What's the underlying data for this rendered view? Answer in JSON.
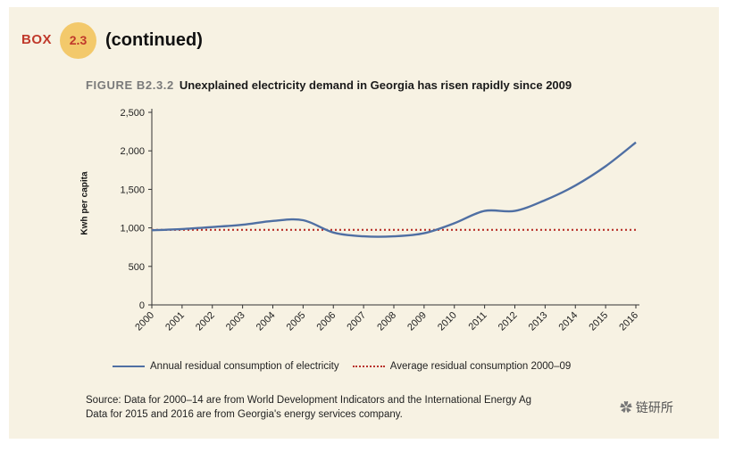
{
  "box": {
    "label": "BOX",
    "number": "2.3",
    "continued": "(continued)"
  },
  "figure": {
    "id": "FIGURE B2.3.2",
    "title": "Unexplained electricity demand in Georgia has risen rapidly since 2009"
  },
  "legend": {
    "series1": "Annual residual consumption of electricity",
    "series2": "Average residual consumption 2000–09"
  },
  "source": {
    "line1": "Source: Data for 2000–14 are from World Development Indicators and the International Energy Ag",
    "line2": "Data for 2015 and 2016 are from Georgia's energy services company."
  },
  "watermark": "链研所",
  "colors": {
    "series1": "#4f6fa3",
    "series2": "#b8322b",
    "badge": "#f3c96b",
    "box_label": "#c0392b"
  },
  "chart_data": {
    "type": "line",
    "ylabel": "Kwh per capita",
    "xlabel": "",
    "ylim": [
      0,
      2500
    ],
    "yticks": [
      "0",
      "500",
      "1,000",
      "1,500",
      "2,000",
      "2,500"
    ],
    "ytick_values": [
      0,
      500,
      1000,
      1500,
      2000,
      2500
    ],
    "x": [
      "2000",
      "2001",
      "2002",
      "2003",
      "2004",
      "2005",
      "2006",
      "2007",
      "2008",
      "2009",
      "2010",
      "2011",
      "2012",
      "2013",
      "2014",
      "2015",
      "2016"
    ],
    "series": [
      {
        "name": "Annual residual consumption of electricity",
        "style": "solid",
        "values": [
          970,
          985,
          1010,
          1040,
          1090,
          1100,
          940,
          890,
          890,
          930,
          1060,
          1220,
          1220,
          1360,
          1550,
          1800,
          2110
        ]
      },
      {
        "name": "Average residual consumption 2000–09",
        "style": "dotted",
        "values": [
          975,
          975,
          975,
          975,
          975,
          975,
          975,
          975,
          975,
          975,
          975,
          975,
          975,
          975,
          975,
          975,
          975
        ]
      }
    ],
    "grid": false,
    "legend_position": "bottom"
  }
}
